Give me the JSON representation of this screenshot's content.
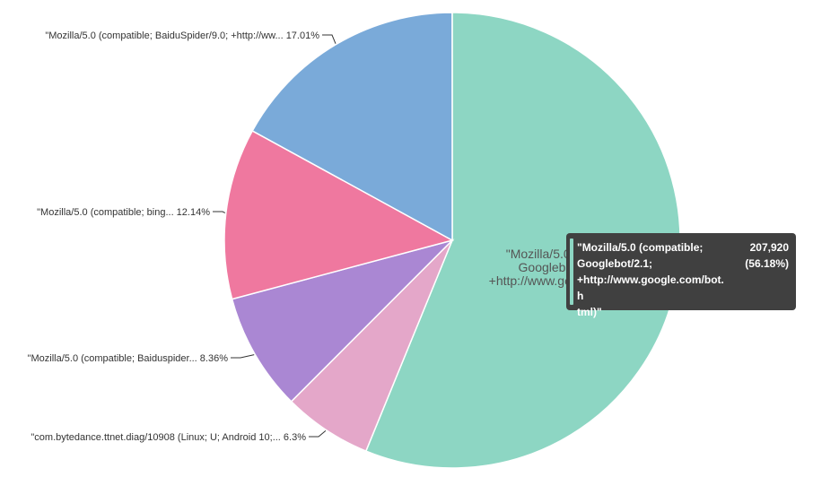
{
  "chart_data": {
    "type": "pie",
    "title": "",
    "slices": [
      {
        "label": "\"Mozilla/5.0 (compatible; Googlebot/2.1; +http://www.google.com/bot.html)\"",
        "short_label": "",
        "percent": 56.18,
        "percent_label": "",
        "color": "#8dd6c3"
      },
      {
        "label": "\"com.bytedance.ttnet.diag/10908 (Linux; U; Android 10;...",
        "short_label": "\"com.bytedance.ttnet.diag/10908 (Linux; U; Android 10;...",
        "percent": 6.3,
        "percent_label": "6.3%",
        "color": "#e4a7c9"
      },
      {
        "label": "\"Mozilla/5.0 (compatible; Baiduspider...",
        "short_label": "\"Mozilla/5.0 (compatible; Baiduspider...",
        "percent": 8.36,
        "percent_label": "8.36%",
        "color": "#aa87d3"
      },
      {
        "label": "\"Mozilla/5.0 (compatible; bing...",
        "short_label": "\"Mozilla/5.0 (compatible; bing...",
        "percent": 12.14,
        "percent_label": "12.14%",
        "color": "#ef789f"
      },
      {
        "label": "\"Mozilla/5.0 (compatible; BaiduSpider/9.0; +http://ww...",
        "short_label": "\"Mozilla/5.0 (compatible; BaiduSpider/9.0; +http://ww...",
        "percent": 17.01,
        "percent_label": "17.01%",
        "color": "#7aaad9"
      }
    ]
  },
  "slice_inner_label": {
    "lines": [
      "\"Mozilla/5.0 (",
      "Googleb",
      "+http://www.google"
    ]
  },
  "tooltip": {
    "label_lines": [
      "\"Mozilla/5.0 (compatible;",
      "Googlebot/2.1;",
      "+http://www.google.com/bot.h",
      "tml)\""
    ],
    "value": "207,920",
    "percent": "(56.18%)",
    "color": "#8dd6c3"
  }
}
